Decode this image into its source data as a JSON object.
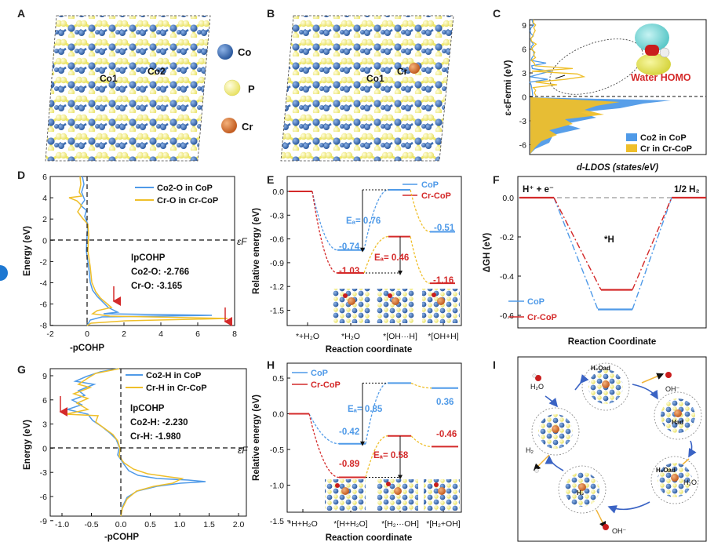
{
  "figure": {
    "panel_labels": [
      "A",
      "B",
      "C",
      "D",
      "E",
      "F",
      "G",
      "H",
      "I"
    ],
    "colors": {
      "co": "#3f6fb6",
      "p": "#f3ef8a",
      "cr": "#d8742f",
      "blue": "#4f9ae8",
      "yellow": "#efbf2a",
      "red": "#d42a2a",
      "grey": "#9a9a9a"
    }
  },
  "panel_a": {
    "atoms": [
      "Co",
      "P",
      "Cr"
    ],
    "sites": [
      "Co1",
      "Co2"
    ]
  },
  "panel_b": {
    "sites": [
      "Co1",
      "Cr"
    ]
  },
  "panel_c": {
    "ylabel": "ε-εFermi (eV)",
    "xlabel": "d-LDOS  (states/eV)",
    "yticks": [
      "9",
      "6",
      "3",
      "0",
      "-3",
      "-6"
    ],
    "orbital_label": "Water HOMO",
    "legend": [
      "Co2 in CoP",
      "Cr in Cr-CoP"
    ]
  },
  "panel_d": {
    "ylabel": "Energy (eV)",
    "xlabel": "-pCOHP",
    "xticks": [
      "-2",
      "0",
      "2",
      "4",
      "6",
      "8"
    ],
    "yticks": [
      "6",
      "4",
      "2",
      "0",
      "-2",
      "-4",
      "-6",
      "-8"
    ],
    "legend": [
      "Co2-O in CoP",
      "Cr-O in Cr-CoP"
    ],
    "ef_label": "εF",
    "ipcohp_title": "IpCOHP",
    "ipcohp_lines": [
      "Co2-O: -2.766",
      "Cr-O: -3.165"
    ]
  },
  "panel_e": {
    "ylabel": "Relative energy (eV)",
    "xlabel": "Reaction coordinate",
    "yticks": [
      "0.0",
      "-0.3",
      "-0.6",
      "-0.9",
      "-1.2",
      "-1.5"
    ],
    "xticks": [
      "*+H₂O",
      "*H₂O",
      "*[OH···H]",
      "*[OH+H]"
    ],
    "legend": [
      "CoP",
      "Cr-CoP"
    ],
    "ea_blue": "Eₐ= 0.76",
    "ea_red": "Eₐ= 0.46",
    "values_blue": [
      "-0.74",
      "-0.51"
    ],
    "values_red": [
      "-1.03",
      "-1.16"
    ]
  },
  "panel_f": {
    "ylabel": "ΔGH (eV)",
    "xlabel": "Reaction Coordinate",
    "yticks": [
      "0.0",
      "-0.2",
      "-0.4",
      "-0.6"
    ],
    "left_label": "H⁺ + e⁻",
    "right_label": "1/2 H₂",
    "middle_label": "*H",
    "legend": [
      "CoP",
      "Cr-CoP"
    ]
  },
  "panel_g": {
    "ylabel": "Energy (eV)",
    "xlabel": "-pCOHP",
    "xticks": [
      "-1.0",
      "-0.5",
      "0.0",
      "0.5",
      "1.0",
      "1.5",
      "2.0"
    ],
    "yticks": [
      "9",
      "6",
      "3",
      "0",
      "-3",
      "-6",
      "-9"
    ],
    "legend": [
      "Co2-H in CoP",
      "Cr-H in Cr-CoP"
    ],
    "ef_label": "εF",
    "ipcohp_title": "IpCOHP",
    "ipcohp_lines": [
      "Co2-H: -2.230",
      "Cr-H: -1.980"
    ]
  },
  "panel_h": {
    "ylabel": "Relative energy (eV)",
    "xlabel": "Reaction coordinate",
    "yticks": [
      "0.5",
      "0.0",
      "-0.5",
      "-1.0",
      "-1.5"
    ],
    "xticks": [
      "*H+H₂O",
      "*[H+H₂O]",
      "*[H₂···OH]",
      "*[H₂+OH]"
    ],
    "legend": [
      "CoP",
      "Cr-CoP"
    ],
    "ea_blue": "Eₐ= 0.85",
    "ea_red": "Eₐ= 0.58",
    "values_blue": [
      "-0.42",
      "0.36"
    ],
    "values_red": [
      "-0.89",
      "-0.46"
    ]
  },
  "panel_i": {
    "labels": [
      "H₂O",
      "H₂Oad",
      "OH⁻",
      "Had",
      "H₂O",
      "H₂Oad",
      "H₂",
      "OH⁻",
      "H₂"
    ]
  }
}
